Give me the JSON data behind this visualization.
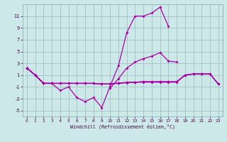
{
  "x": [
    0,
    1,
    2,
    3,
    4,
    5,
    6,
    7,
    8,
    9,
    10,
    11,
    12,
    13,
    14,
    15,
    16,
    17,
    18,
    19,
    20,
    21,
    22,
    23
  ],
  "line1_y": [
    2.2,
    1.0,
    -0.4,
    -0.4,
    -1.6,
    -1.0,
    -2.8,
    -3.5,
    -2.8,
    -4.5,
    -0.9,
    2.6,
    8.2,
    11.0,
    11.0,
    11.5,
    12.5,
    9.3,
    null,
    null,
    null,
    null,
    null,
    null
  ],
  "line2_y": [
    2.2,
    1.0,
    -0.4,
    -0.4,
    null,
    null,
    null,
    null,
    null,
    null,
    -1.2,
    0.4,
    2.2,
    3.2,
    3.8,
    4.2,
    4.8,
    3.4,
    3.2,
    null,
    null,
    null,
    null,
    null
  ],
  "line3_y": [
    2.2,
    1.0,
    -0.4,
    -0.4,
    -0.4,
    -0.4,
    -0.4,
    -0.4,
    -0.4,
    -0.5,
    -0.5,
    -0.4,
    -0.3,
    -0.2,
    -0.2,
    -0.2,
    -0.2,
    -0.2,
    -0.2,
    1.0,
    1.2,
    1.2,
    1.2,
    -0.5
  ],
  "line4_y": [
    2.2,
    1.0,
    -0.4,
    -0.4,
    -0.4,
    -0.4,
    -0.4,
    -0.4,
    -0.4,
    -0.5,
    -0.5,
    -0.35,
    -0.25,
    -0.2,
    -0.15,
    -0.15,
    -0.15,
    -0.15,
    -0.15,
    1.0,
    1.2,
    1.2,
    1.2,
    -0.5
  ],
  "line5_y": [
    2.2,
    1.0,
    -0.4,
    -0.4,
    -0.4,
    -0.4,
    -0.4,
    -0.4,
    -0.4,
    -0.5,
    -0.5,
    -0.35,
    -0.25,
    -0.2,
    -0.1,
    -0.1,
    -0.1,
    -0.1,
    -0.1,
    1.0,
    1.2,
    1.2,
    1.2,
    -0.5
  ],
  "bg_color": "#cce8e8",
  "line_color": "#aa00aa",
  "grid_color": "#99bbbb",
  "xlabel": "Windchill (Refroidissement éolien,°C)",
  "ylim": [
    -6,
    13
  ],
  "xlim": [
    -0.5,
    23.5
  ],
  "yticks": [
    -5,
    -3,
    -1,
    1,
    3,
    5,
    7,
    9,
    11
  ],
  "xticks": [
    0,
    1,
    2,
    3,
    4,
    5,
    6,
    7,
    8,
    9,
    10,
    11,
    12,
    13,
    14,
    15,
    16,
    17,
    18,
    19,
    20,
    21,
    22,
    23
  ]
}
